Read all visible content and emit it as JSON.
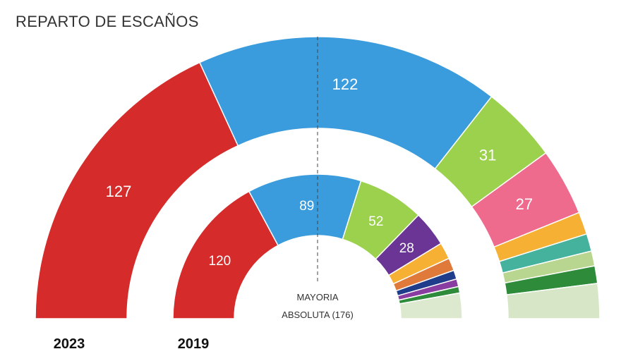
{
  "title": "REPARTO DE ESCAÑOS",
  "chart_data": {
    "type": "hemicycle",
    "total_seats": 350,
    "majority": {
      "label_line1": "MAYORIA",
      "label_line2": "ABSOLUTA (176)",
      "value": 176
    },
    "rings": [
      {
        "year": "2023",
        "segments": [
          {
            "value": 127,
            "color": "#d52b2b",
            "label": "127"
          },
          {
            "value": 122,
            "color": "#3a9cdc",
            "label": "122"
          },
          {
            "value": 31,
            "color": "#9bd14d",
            "label": "31"
          },
          {
            "value": 27,
            "color": "#ee6b8d",
            "label": "27"
          },
          {
            "value": 9,
            "color": "#f6b134",
            "label": ""
          },
          {
            "value": 7,
            "color": "#45b29d",
            "label": ""
          },
          {
            "value": 6,
            "color": "#b8d68f",
            "label": ""
          },
          {
            "value": 7,
            "color": "#2e8b3a",
            "label": ""
          },
          {
            "value": 14,
            "color": "#d6e6c6",
            "label": ""
          }
        ]
      },
      {
        "year": "2019",
        "segments": [
          {
            "value": 120,
            "color": "#d52b2b",
            "label": "120"
          },
          {
            "value": 89,
            "color": "#3a9cdc",
            "label": "89"
          },
          {
            "value": 52,
            "color": "#9bd14d",
            "label": "52"
          },
          {
            "value": 28,
            "color": "#6a3595",
            "label": "28"
          },
          {
            "value": 13,
            "color": "#f6b134",
            "label": ""
          },
          {
            "value": 10,
            "color": "#e07a3a",
            "label": ""
          },
          {
            "value": 7,
            "color": "#1f3d8a",
            "label": ""
          },
          {
            "value": 6,
            "color": "#8a3da0",
            "label": ""
          },
          {
            "value": 5,
            "color": "#2e8b3a",
            "label": ""
          },
          {
            "value": 20,
            "color": "#dde9cf",
            "label": ""
          }
        ]
      }
    ]
  }
}
